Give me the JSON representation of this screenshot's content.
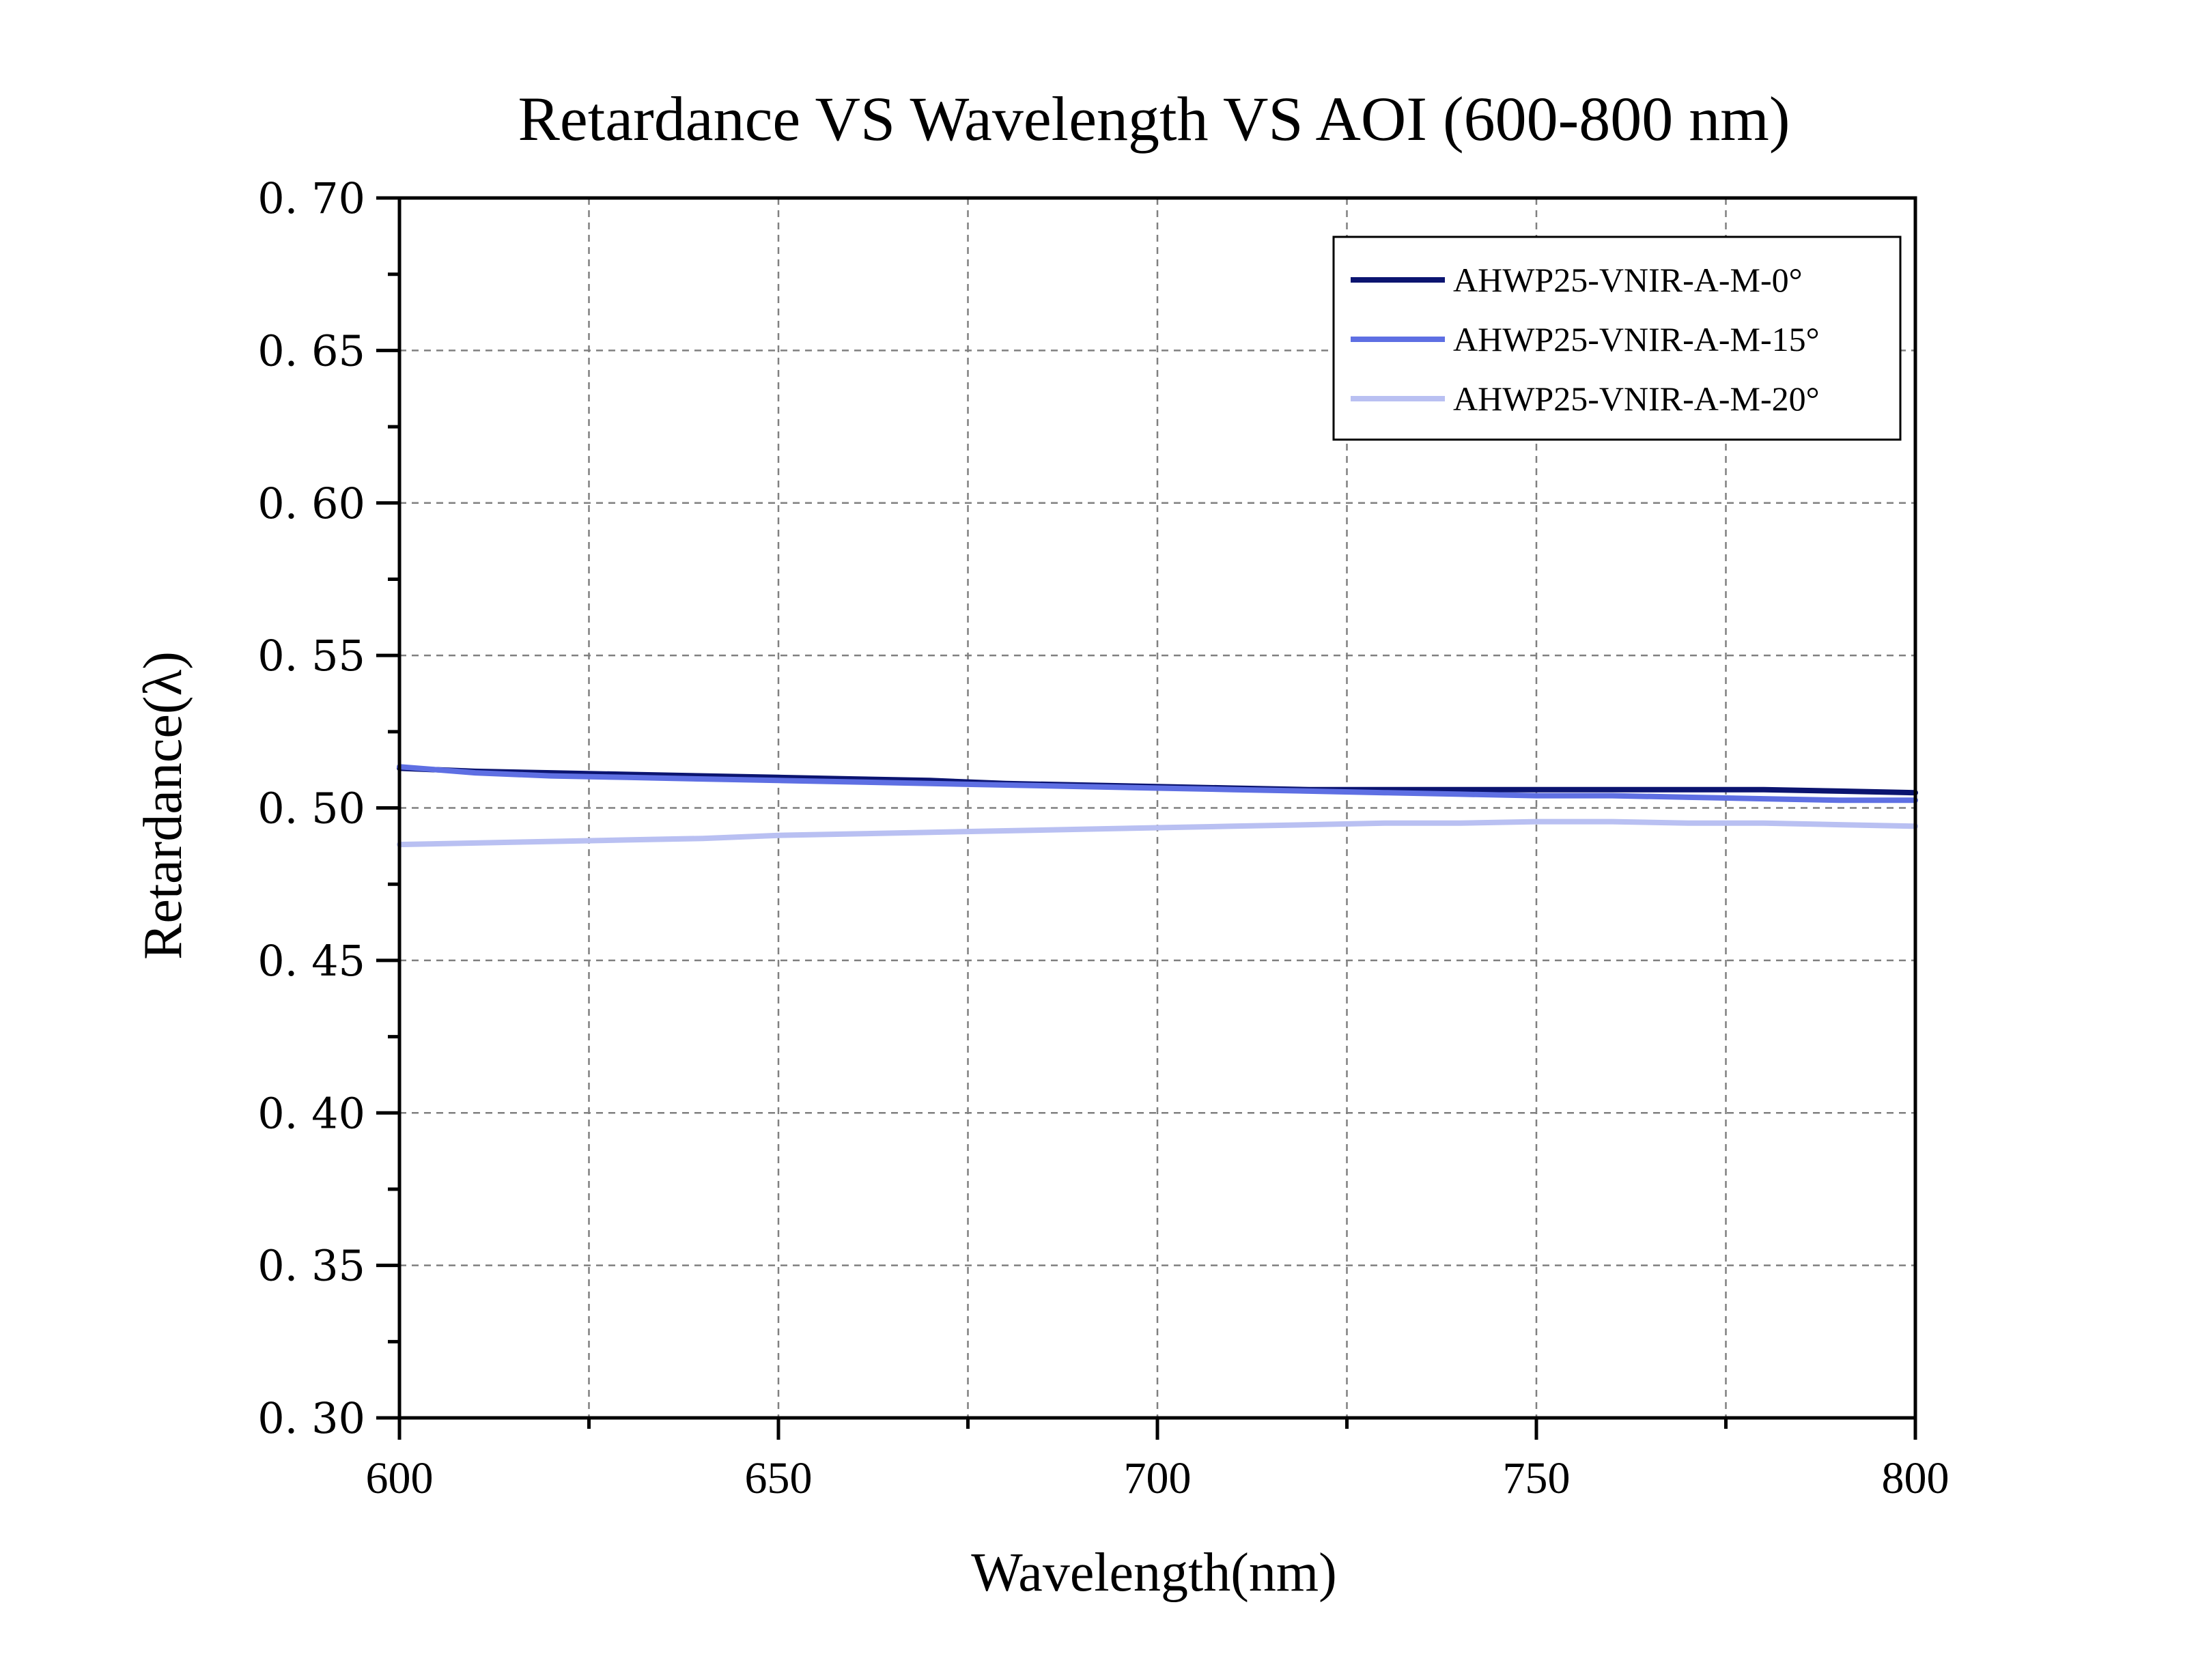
{
  "chart_data": {
    "type": "line",
    "title": "Retardance VS Wavelength VS AOI (600-800 nm)",
    "xlabel": "Wavelength(nm)",
    "ylabel": "Retardance(λ)",
    "xlim": [
      600,
      800
    ],
    "ylim": [
      0.3,
      0.7
    ],
    "xticks": [
      600,
      650,
      700,
      750,
      800
    ],
    "xtick_labels": [
      "600",
      "650",
      "700",
      "750",
      "800"
    ],
    "yticks": [
      0.3,
      0.35,
      0.4,
      0.45,
      0.5,
      0.55,
      0.6,
      0.65,
      0.7
    ],
    "ytick_labels": [
      "0. 30",
      "0. 35",
      "0. 40",
      "0. 45",
      "0. 50",
      "0. 55",
      "0. 60",
      "0. 65",
      "0. 70"
    ],
    "grid": true,
    "legend_position": "top-right",
    "x": [
      600,
      610,
      620,
      630,
      640,
      650,
      660,
      670,
      680,
      690,
      700,
      710,
      720,
      730,
      740,
      750,
      760,
      770,
      780,
      790,
      800
    ],
    "series": [
      {
        "name": "AHWP25-VNIR-A-M-0°",
        "color": "#0b1470",
        "values": [
          0.513,
          0.512,
          0.5115,
          0.511,
          0.5105,
          0.51,
          0.5095,
          0.509,
          0.508,
          0.5075,
          0.507,
          0.5065,
          0.506,
          0.506,
          0.506,
          0.506,
          0.506,
          0.506,
          0.506,
          0.5055,
          0.505
        ]
      },
      {
        "name": "AHWP25-VNIR-A-M-15°",
        "color": "#5e6fe3",
        "values": [
          0.5135,
          0.5115,
          0.5105,
          0.51,
          0.5095,
          0.509,
          0.5085,
          0.508,
          0.5075,
          0.507,
          0.5065,
          0.506,
          0.5055,
          0.505,
          0.5045,
          0.504,
          0.504,
          0.5035,
          0.503,
          0.5025,
          0.5025
        ]
      },
      {
        "name": "AHWP25-VNIR-A-M-20°",
        "color": "#b9c0f2",
        "values": [
          0.488,
          0.4885,
          0.489,
          0.4895,
          0.49,
          0.491,
          0.4915,
          0.492,
          0.4925,
          0.493,
          0.4935,
          0.494,
          0.4945,
          0.495,
          0.495,
          0.4955,
          0.4955,
          0.495,
          0.495,
          0.4945,
          0.494
        ]
      }
    ]
  }
}
